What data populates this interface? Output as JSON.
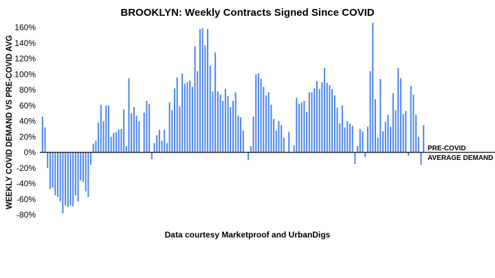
{
  "chart_data": {
    "type": "bar",
    "title": "BROOKLYN: Weekly Contracts Signed Since COVID",
    "ylabel": "WEEKLY COVID DEMAND VS PRE-COVID AVG",
    "xlabel": "",
    "credit": "Data courtesy Marketproof and UrbanDigs",
    "ylim": [
      -80,
      160
    ],
    "yticks": [
      160,
      140,
      120,
      100,
      80,
      60,
      40,
      20,
      0,
      -20,
      -40,
      -60,
      -80
    ],
    "ytick_labels": [
      "160%",
      "140%",
      "120%",
      "100%",
      "80%",
      "60%",
      "40%",
      "20%",
      "0%",
      "-20%",
      "-40%",
      "-60%",
      "-80%"
    ],
    "baseline_annotation": [
      "PRE-COVID",
      "AVERAGE DEMAND"
    ],
    "grid": false,
    "bar_color": "#4a86e8",
    "values": [
      46,
      32,
      -20,
      -47,
      -45,
      -55,
      -57,
      -63,
      -78,
      -68,
      -70,
      -68,
      -69,
      -55,
      -63,
      -36,
      -38,
      -50,
      -57,
      -16,
      11,
      15,
      38,
      61,
      40,
      60,
      60,
      20,
      25,
      26,
      29,
      30,
      55,
      8,
      95,
      50,
      58,
      47,
      40,
      0,
      51,
      66,
      62,
      -9,
      12,
      22,
      29,
      15,
      29,
      12,
      64,
      54,
      82,
      96,
      59,
      101,
      88,
      90,
      92,
      84,
      136,
      104,
      158,
      159,
      137,
      158,
      111,
      78,
      128,
      78,
      74,
      66,
      81,
      72,
      58,
      66,
      77,
      47,
      45,
      28,
      0,
      -10,
      8,
      46,
      100,
      101,
      94,
      84,
      73,
      77,
      61,
      43,
      28,
      40,
      35,
      19,
      0,
      26,
      0,
      9,
      70,
      62,
      64,
      66,
      52,
      77,
      77,
      82,
      91,
      81,
      90,
      108,
      89,
      86,
      81,
      73,
      57,
      37,
      60,
      32,
      40,
      37,
      34,
      -15,
      8,
      30,
      27,
      -6,
      33,
      104,
      166,
      68,
      19,
      94,
      27,
      39,
      48,
      33,
      76,
      54,
      108,
      95,
      49,
      53,
      -4,
      85,
      74,
      48,
      20,
      -16,
      35
    ]
  }
}
